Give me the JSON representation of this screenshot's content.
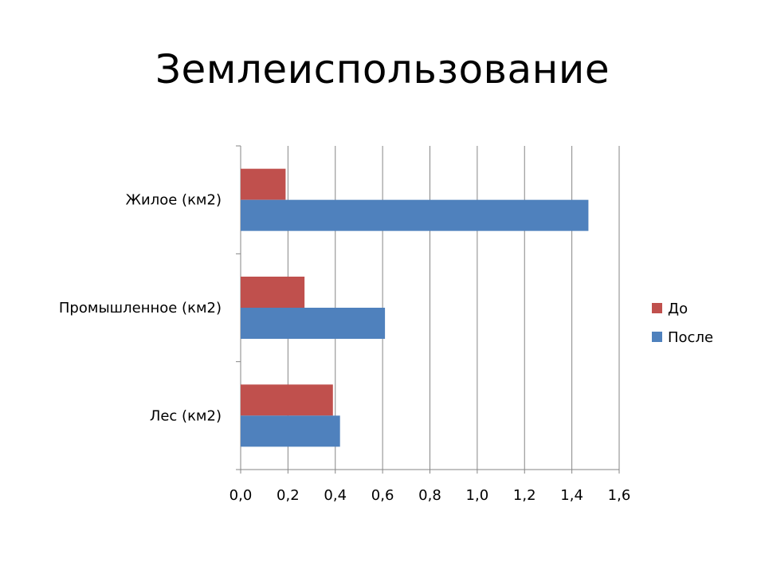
{
  "chart_data": {
    "type": "bar",
    "orientation": "horizontal",
    "title": "Землеиспользование",
    "categories": [
      "Жилое (км2)",
      "Промышленное (км2)",
      "Лес (км2)"
    ],
    "series": [
      {
        "name": "До",
        "color": "#C0504D",
        "values": [
          0.19,
          0.27,
          0.39
        ]
      },
      {
        "name": "После",
        "color": "#4F81BD",
        "values": [
          1.47,
          0.61,
          0.42
        ]
      }
    ],
    "xlim": [
      0,
      1.6
    ],
    "xticks": [
      "0,0",
      "0,2",
      "0,4",
      "0,6",
      "0,8",
      "1,0",
      "1,2",
      "1,4",
      "1,6"
    ],
    "grid": true,
    "legend_position": "right"
  }
}
